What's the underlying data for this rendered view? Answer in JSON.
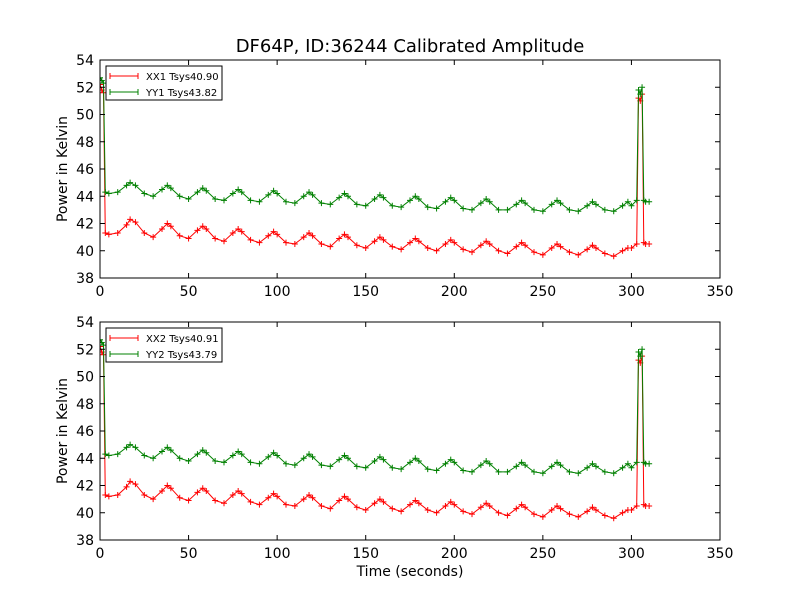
{
  "figure": {
    "title": "DF64P, ID:36244 Calibrated Amplitude"
  },
  "chart_data": [
    {
      "type": "line",
      "ylabel": "Power in Kelvin",
      "xlabel": "",
      "xlim": [
        0,
        350
      ],
      "ylim": [
        38,
        54
      ],
      "xticks": [
        0,
        50,
        100,
        150,
        200,
        250,
        300,
        350
      ],
      "yticks": [
        38,
        40,
        42,
        44,
        46,
        48,
        50,
        52,
        54
      ],
      "legend_position": "top-left",
      "series": [
        {
          "name": "XX1 Tsys40.90",
          "color": "#ff0000",
          "x": [
            0,
            1,
            2,
            3,
            5,
            10,
            15,
            17,
            20,
            25,
            30,
            35,
            38,
            40,
            45,
            50,
            55,
            58,
            60,
            65,
            70,
            75,
            78,
            80,
            85,
            90,
            95,
            98,
            100,
            105,
            110,
            115,
            118,
            120,
            125,
            130,
            135,
            138,
            140,
            145,
            150,
            155,
            158,
            160,
            165,
            170,
            175,
            178,
            180,
            185,
            190,
            195,
            198,
            200,
            205,
            210,
            215,
            218,
            220,
            225,
            230,
            235,
            238,
            240,
            245,
            250,
            255,
            258,
            260,
            265,
            270,
            275,
            278,
            280,
            285,
            290,
            295,
            298,
            300,
            303,
            304,
            305,
            306,
            307,
            308,
            310
          ],
          "y": [
            52.2,
            51.8,
            51.6,
            41.3,
            41.2,
            41.3,
            41.9,
            42.3,
            42.1,
            41.3,
            41.0,
            41.6,
            42.0,
            41.8,
            41.1,
            40.9,
            41.5,
            41.8,
            41.6,
            40.9,
            40.7,
            41.3,
            41.6,
            41.4,
            40.8,
            40.6,
            41.1,
            41.4,
            41.2,
            40.6,
            40.5,
            41.0,
            41.3,
            41.1,
            40.5,
            40.3,
            40.9,
            41.2,
            41.0,
            40.4,
            40.2,
            40.7,
            41.0,
            40.8,
            40.3,
            40.1,
            40.6,
            40.9,
            40.7,
            40.2,
            40.0,
            40.5,
            40.8,
            40.6,
            40.1,
            39.9,
            40.4,
            40.7,
            40.5,
            40.0,
            39.8,
            40.3,
            40.6,
            40.4,
            39.9,
            39.7,
            40.2,
            40.5,
            40.3,
            39.9,
            39.7,
            40.1,
            40.4,
            40.2,
            39.8,
            39.6,
            40.0,
            40.2,
            40.2,
            40.5,
            51.2,
            51.0,
            51.5,
            40.6,
            40.5,
            40.5
          ]
        },
        {
          "name": "YY1 Tsys43.82",
          "color": "#008000",
          "x": [
            0,
            1,
            2,
            3,
            5,
            10,
            15,
            17,
            20,
            25,
            30,
            35,
            38,
            40,
            45,
            50,
            55,
            58,
            60,
            65,
            70,
            75,
            78,
            80,
            85,
            90,
            95,
            98,
            100,
            105,
            110,
            115,
            118,
            120,
            125,
            130,
            135,
            138,
            140,
            145,
            150,
            155,
            158,
            160,
            165,
            170,
            175,
            178,
            180,
            185,
            190,
            195,
            198,
            200,
            205,
            210,
            215,
            218,
            220,
            225,
            230,
            235,
            238,
            240,
            245,
            250,
            255,
            258,
            260,
            265,
            270,
            275,
            278,
            280,
            285,
            290,
            295,
            298,
            300,
            303,
            304,
            305,
            306,
            307,
            308,
            310
          ],
          "y": [
            52.7,
            52.5,
            52.3,
            44.3,
            44.2,
            44.3,
            44.8,
            45.0,
            44.8,
            44.2,
            44.0,
            44.5,
            44.8,
            44.6,
            44.0,
            43.8,
            44.3,
            44.6,
            44.4,
            43.8,
            43.7,
            44.2,
            44.5,
            44.3,
            43.7,
            43.6,
            44.1,
            44.4,
            44.2,
            43.6,
            43.5,
            44.0,
            44.3,
            44.1,
            43.5,
            43.4,
            43.9,
            44.2,
            44.0,
            43.4,
            43.3,
            43.8,
            44.1,
            43.9,
            43.3,
            43.2,
            43.7,
            44.0,
            43.8,
            43.2,
            43.1,
            43.6,
            43.9,
            43.7,
            43.1,
            43.0,
            43.5,
            43.8,
            43.6,
            43.0,
            43.0,
            43.4,
            43.7,
            43.5,
            43.0,
            42.9,
            43.4,
            43.7,
            43.5,
            43.0,
            42.9,
            43.3,
            43.6,
            43.4,
            43.0,
            42.9,
            43.3,
            43.6,
            43.3,
            43.7,
            51.8,
            51.5,
            52.0,
            43.7,
            43.6,
            43.6
          ]
        }
      ]
    },
    {
      "type": "line",
      "ylabel": "Power in Kelvin",
      "xlabel": "Time (seconds)",
      "xlim": [
        0,
        350
      ],
      "ylim": [
        38,
        54
      ],
      "xticks": [
        0,
        50,
        100,
        150,
        200,
        250,
        300,
        350
      ],
      "yticks": [
        38,
        40,
        42,
        44,
        46,
        48,
        50,
        52,
        54
      ],
      "legend_position": "top-left",
      "series": [
        {
          "name": "XX2 Tsys40.91",
          "color": "#ff0000",
          "x": [
            0,
            1,
            2,
            3,
            5,
            10,
            15,
            17,
            20,
            25,
            30,
            35,
            38,
            40,
            45,
            50,
            55,
            58,
            60,
            65,
            70,
            75,
            78,
            80,
            85,
            90,
            95,
            98,
            100,
            105,
            110,
            115,
            118,
            120,
            125,
            130,
            135,
            138,
            140,
            145,
            150,
            155,
            158,
            160,
            165,
            170,
            175,
            178,
            180,
            185,
            190,
            195,
            198,
            200,
            205,
            210,
            215,
            218,
            220,
            225,
            230,
            235,
            238,
            240,
            245,
            250,
            255,
            258,
            260,
            265,
            270,
            275,
            278,
            280,
            285,
            290,
            295,
            298,
            300,
            303,
            304,
            305,
            306,
            307,
            308,
            310
          ],
          "y": [
            52.2,
            51.8,
            51.6,
            41.3,
            41.2,
            41.3,
            41.9,
            42.3,
            42.1,
            41.3,
            41.0,
            41.6,
            42.0,
            41.8,
            41.1,
            40.9,
            41.5,
            41.8,
            41.6,
            40.9,
            40.7,
            41.3,
            41.6,
            41.4,
            40.8,
            40.6,
            41.1,
            41.4,
            41.2,
            40.6,
            40.5,
            41.0,
            41.3,
            41.1,
            40.5,
            40.3,
            40.9,
            41.2,
            41.0,
            40.4,
            40.2,
            40.7,
            41.0,
            40.8,
            40.3,
            40.1,
            40.6,
            40.9,
            40.7,
            40.2,
            40.0,
            40.5,
            40.8,
            40.6,
            40.1,
            39.9,
            40.4,
            40.7,
            40.5,
            40.0,
            39.8,
            40.3,
            40.6,
            40.4,
            39.9,
            39.7,
            40.2,
            40.5,
            40.3,
            39.9,
            39.7,
            40.1,
            40.4,
            40.2,
            39.8,
            39.6,
            40.0,
            40.2,
            40.2,
            40.5,
            51.2,
            51.0,
            51.5,
            40.6,
            40.5,
            40.5
          ]
        },
        {
          "name": "YY2 Tsys43.79",
          "color": "#008000",
          "x": [
            0,
            1,
            2,
            3,
            5,
            10,
            15,
            17,
            20,
            25,
            30,
            35,
            38,
            40,
            45,
            50,
            55,
            58,
            60,
            65,
            70,
            75,
            78,
            80,
            85,
            90,
            95,
            98,
            100,
            105,
            110,
            115,
            118,
            120,
            125,
            130,
            135,
            138,
            140,
            145,
            150,
            155,
            158,
            160,
            165,
            170,
            175,
            178,
            180,
            185,
            190,
            195,
            198,
            200,
            205,
            210,
            215,
            218,
            220,
            225,
            230,
            235,
            238,
            240,
            245,
            250,
            255,
            258,
            260,
            265,
            270,
            275,
            278,
            280,
            285,
            290,
            295,
            298,
            300,
            303,
            304,
            305,
            306,
            307,
            308,
            310
          ],
          "y": [
            52.7,
            52.5,
            52.3,
            44.3,
            44.2,
            44.3,
            44.8,
            45.0,
            44.8,
            44.2,
            44.0,
            44.5,
            44.8,
            44.6,
            44.0,
            43.8,
            44.3,
            44.6,
            44.4,
            43.8,
            43.7,
            44.2,
            44.5,
            44.3,
            43.7,
            43.6,
            44.1,
            44.4,
            44.2,
            43.6,
            43.5,
            44.0,
            44.3,
            44.1,
            43.5,
            43.4,
            43.9,
            44.2,
            44.0,
            43.4,
            43.3,
            43.8,
            44.1,
            43.9,
            43.3,
            43.2,
            43.7,
            44.0,
            43.8,
            43.2,
            43.1,
            43.6,
            43.9,
            43.7,
            43.1,
            43.0,
            43.5,
            43.8,
            43.6,
            43.0,
            43.0,
            43.4,
            43.7,
            43.5,
            43.0,
            42.9,
            43.4,
            43.7,
            43.5,
            43.0,
            42.9,
            43.3,
            43.6,
            43.4,
            43.0,
            42.9,
            43.3,
            43.6,
            43.3,
            43.7,
            51.8,
            51.5,
            52.0,
            43.7,
            43.6,
            43.6
          ]
        }
      ]
    }
  ]
}
